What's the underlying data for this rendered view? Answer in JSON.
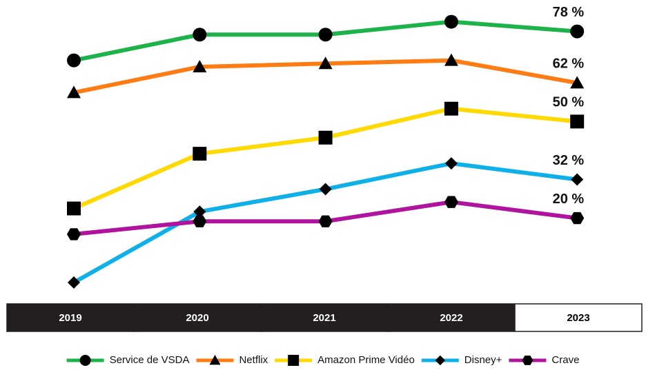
{
  "chart_data": {
    "type": "line",
    "categories": [
      "2019",
      "2020",
      "2021",
      "2022",
      "2023"
    ],
    "series": [
      {
        "name": "Service de VSDA",
        "color": "#1db34a",
        "marker": "circle",
        "values": [
          69,
          77,
          77,
          81,
          78
        ],
        "value_labels": [
          null,
          null,
          null,
          null,
          "78 %"
        ]
      },
      {
        "name": "Netflix",
        "color": "#ff7b14",
        "marker": "triangle",
        "values": [
          59,
          67,
          68,
          69,
          62
        ],
        "value_labels": [
          null,
          null,
          null,
          null,
          "62 %"
        ]
      },
      {
        "name": "Amazon Prime Vidéo",
        "color": "#ffd900",
        "marker": "square",
        "values": [
          23,
          40,
          45,
          54,
          50
        ],
        "value_labels": [
          null,
          null,
          null,
          null,
          "50 %"
        ]
      },
      {
        "name": "Disney+",
        "color": "#0fb0e8",
        "marker": "diamond",
        "values": [
          0,
          22,
          29,
          37,
          32
        ],
        "value_labels": [
          null,
          null,
          null,
          null,
          "32 %"
        ]
      },
      {
        "name": "Crave",
        "color": "#b0139d",
        "marker": "hexagon",
        "values": [
          15,
          19,
          19,
          25,
          20
        ],
        "value_labels": [
          null,
          null,
          null,
          null,
          "20 %"
        ]
      }
    ]
  }
}
